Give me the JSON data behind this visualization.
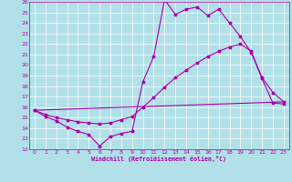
{
  "xlabel": "Windchill (Refroidissement éolien,°C)",
  "ylabel": "",
  "xlim": [
    -0.5,
    23.5
  ],
  "ylim": [
    12,
    26
  ],
  "xticks": [
    0,
    1,
    2,
    3,
    4,
    5,
    6,
    7,
    8,
    9,
    10,
    11,
    12,
    13,
    14,
    15,
    16,
    17,
    18,
    19,
    20,
    21,
    22,
    23
  ],
  "yticks": [
    12,
    13,
    14,
    15,
    16,
    17,
    18,
    19,
    20,
    21,
    22,
    23,
    24,
    25,
    26
  ],
  "background_color": "#b2e0e8",
  "grid_color": "#ffffff",
  "line_color": "#aa00aa",
  "line1_x": [
    0,
    1,
    2,
    3,
    4,
    5,
    6,
    7,
    8,
    9,
    10,
    11,
    12,
    13,
    14,
    15,
    16,
    17,
    18,
    19,
    20,
    21,
    22,
    23
  ],
  "line1_y": [
    15.7,
    15.1,
    14.7,
    14.1,
    13.7,
    13.4,
    12.3,
    13.2,
    13.5,
    13.7,
    18.4,
    20.8,
    26.2,
    24.8,
    25.3,
    25.5,
    24.7,
    25.3,
    24.0,
    22.7,
    21.2,
    18.7,
    16.4,
    16.3
  ],
  "line2_x": [
    0,
    1,
    2,
    3,
    4,
    5,
    6,
    7,
    8,
    9,
    10,
    11,
    12,
    13,
    14,
    15,
    16,
    17,
    18,
    19,
    20,
    21,
    22,
    23
  ],
  "line2_y": [
    15.7,
    15.3,
    15.0,
    14.8,
    14.6,
    14.5,
    14.4,
    14.5,
    14.8,
    15.1,
    16.0,
    16.9,
    17.9,
    18.8,
    19.5,
    20.2,
    20.8,
    21.3,
    21.7,
    22.0,
    21.3,
    18.8,
    17.4,
    16.5
  ],
  "line3_x": [
    0,
    23
  ],
  "line3_y": [
    15.7,
    16.5
  ]
}
